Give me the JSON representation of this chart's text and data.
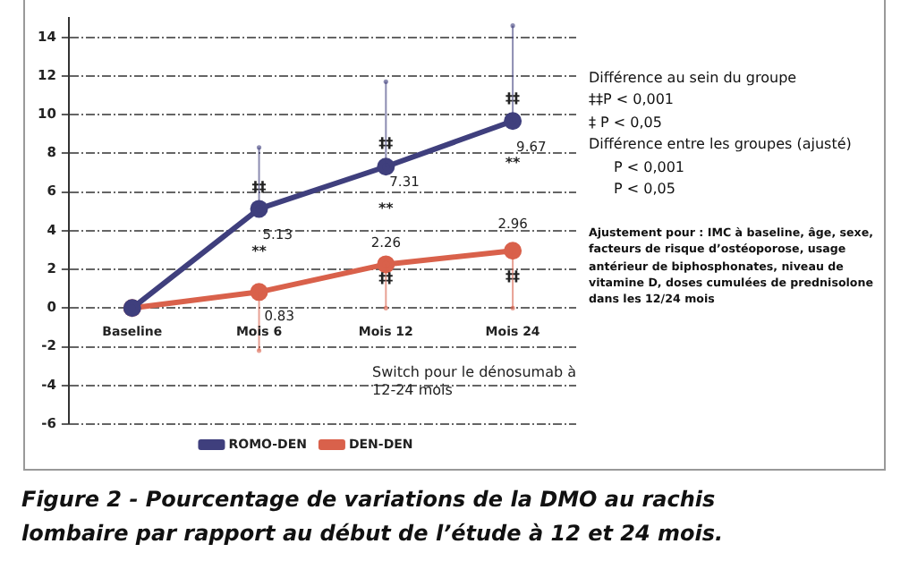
{
  "chart_data": {
    "type": "line",
    "title": "Figure 2 - Pourcentage de variations de la DMO au rachis lombaire par rapport au début de l’étude à 12 et 24 mois.",
    "categories": [
      "Baseline",
      "Mois 6",
      "Mois 12",
      "Mois 24"
    ],
    "series": [
      {
        "name": "ROMO-DEN",
        "color": "#3f3f7d",
        "values": [
          0,
          5.13,
          7.31,
          9.67
        ],
        "value_labels": [
          null,
          "5.13",
          "7.31",
          "9.67"
        ],
        "errors": [
          null,
          [
            5.13,
            8.3
          ],
          [
            7.31,
            11.7
          ],
          [
            9.67,
            14.6
          ]
        ]
      },
      {
        "name": "DEN-DEN",
        "color": "#d9614b",
        "values": [
          0,
          0.83,
          2.26,
          2.96
        ],
        "value_labels": [
          null,
          "0.83",
          "2.26",
          "2.96"
        ],
        "errors": [
          null,
          [
            -2.2,
            0.83
          ],
          [
            0,
            2.26
          ],
          [
            0,
            2.96
          ]
        ]
      }
    ],
    "ylim": [
      -6,
      15
    ],
    "yticks": [
      -6,
      -4,
      -2,
      0,
      2,
      4,
      6,
      8,
      10,
      12,
      14
    ],
    "grid": "y",
    "legend": "bottom",
    "marker": "circle",
    "line_style": "solid",
    "annotations": [
      {
        "text": "‡‡",
        "x": "Mois 6",
        "y": 6.2
      },
      {
        "text": "‡‡",
        "x": "Mois 12",
        "y": 8.5
      },
      {
        "text": "‡‡",
        "x": "Mois 24",
        "y": 10.8
      },
      {
        "text": "‡‡",
        "x": "Mois 12",
        "y": 1.5
      },
      {
        "text": "‡‡",
        "x": "Mois 24",
        "y": 1.6
      },
      "**",
      "**",
      "**",
      "Switch pour le dénosumab à 12-24 mois",
      "Différence au sein du groupe",
      "‡‡P < 0,001",
      "‡  P < 0,05",
      "Différence entre les groupes (ajusté)",
      "P < 0,001",
      "P < 0,05",
      "Ajustement pour : IMC à baseline, âge, sexe, facteurs de risque d’ostéoporose, usage antérieur de biphosphonates, niveau de vitamine D, doses cumulées de prednisolone dans les 12/24 mois"
    ]
  }
}
